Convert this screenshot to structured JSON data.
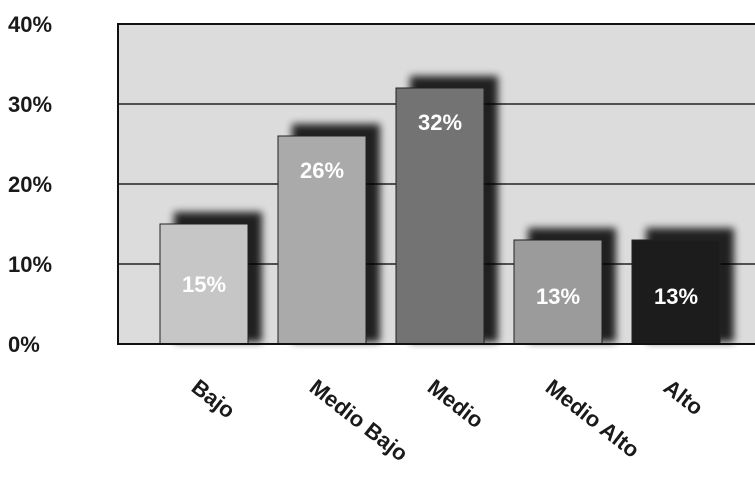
{
  "chart_data": {
    "type": "bar",
    "categories": [
      "Bajo",
      "Medio Bajo",
      "Medio",
      "Medio Alto",
      "Alto"
    ],
    "values": [
      15,
      26,
      32,
      13,
      13
    ],
    "value_labels": [
      "15%",
      "26%",
      "32%",
      "13%",
      "13%"
    ],
    "ylim": [
      0,
      40
    ],
    "yticks": [
      {
        "value": 0,
        "label": "0%"
      },
      {
        "value": 10,
        "label": "10%"
      },
      {
        "value": 20,
        "label": "20%"
      },
      {
        "value": 30,
        "label": "30%"
      },
      {
        "value": 40,
        "label": "40%"
      }
    ],
    "grid": true,
    "title": "",
    "xlabel": "",
    "ylabel": "",
    "colors": {
      "plot_background": "#dcdcdc",
      "bars": [
        "#c6c6c6",
        "#aaaaaa",
        "#737373",
        "#9b9b9b",
        "#1c1c1c"
      ],
      "shadow": "#000000",
      "gridline": "#222222"
    }
  }
}
